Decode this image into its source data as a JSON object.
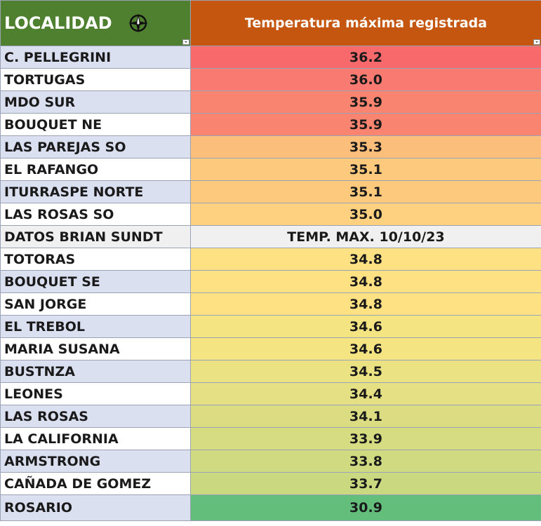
{
  "header": {
    "locality_label": "LOCALIDAD",
    "temperature_label": "Temperatura máxima registrada",
    "locality_bg": "#4e8030",
    "temperature_bg": "#c5560f"
  },
  "rows": [
    {
      "name": "C. PELLEGRINI",
      "value": "36.2",
      "color": "#f8696b"
    },
    {
      "name": "TORTUGAS",
      "value": "36.0",
      "color": "#f97a70"
    },
    {
      "name": "MDO SUR",
      "value": "35.9",
      "color": "#f9846f"
    },
    {
      "name": "BOUQUET NE",
      "value": "35.9",
      "color": "#f9846f"
    },
    {
      "name": "LAS PAREJAS SO",
      "value": "35.3",
      "color": "#fcbe7b"
    },
    {
      "name": "EL RAFANGO",
      "value": "35.1",
      "color": "#fdc97d"
    },
    {
      "name": "ITURRASPE NORTE",
      "value": "35.1",
      "color": "#fdc97d"
    },
    {
      "name": "LAS ROSAS SO",
      "value": "35.0",
      "color": "#fdd17f"
    },
    {
      "name": "DATOS BRIAN SUNDT",
      "value": "TEMP. MAX. 10/10/23",
      "color": "#f0f0f0",
      "note": true
    },
    {
      "name": "TOTORAS",
      "value": "34.8",
      "color": "#fee182"
    },
    {
      "name": "BOUQUET SE",
      "value": "34.8",
      "color": "#fee182"
    },
    {
      "name": "SAN JORGE",
      "value": "34.8",
      "color": "#fee182"
    },
    {
      "name": "EL TREBOL",
      "value": "34.6",
      "color": "#f4e482"
    },
    {
      "name": "MARIA SUSANA",
      "value": "34.6",
      "color": "#f4e482"
    },
    {
      "name": "BUSTNZA",
      "value": "34.5",
      "color": "#ebe283"
    },
    {
      "name": "LEONES",
      "value": "34.4",
      "color": "#e5e083"
    },
    {
      "name": "LAS ROSAS",
      "value": "34.1",
      "color": "#dcdd82"
    },
    {
      "name": "LA CALIFORNIA",
      "value": "33.9",
      "color": "#d6dc82"
    },
    {
      "name": "ARMSTRONG",
      "value": "33.8",
      "color": "#d0da81"
    },
    {
      "name": "CAÑADA DE GOMEZ",
      "value": "33.7",
      "color": "#cad880"
    },
    {
      "name": "ROSARIO",
      "value": "30.9",
      "color": "#63be7b"
    }
  ],
  "icons": {
    "header_emblem": "compass-rose-icon",
    "filter": "filter-dropdown-icon"
  }
}
